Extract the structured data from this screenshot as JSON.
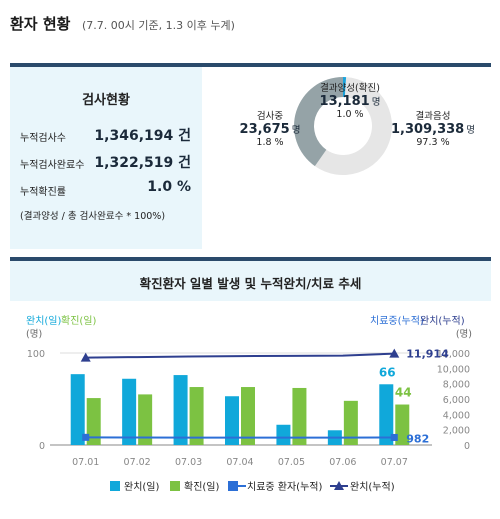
{
  "header": {
    "title": "환자 현황",
    "subtitle": "(7.7. 00시 기준, 1.3 이후 누계)"
  },
  "test_status": {
    "title": "검사현황",
    "rows": [
      {
        "label": "누적검사수",
        "value": "1,346,194 건"
      },
      {
        "label": "누적검사완료수",
        "value": "1,322,519 건"
      },
      {
        "label": "누적확진률",
        "value": "1.0 %"
      }
    ],
    "note": "(결과양성 / 총 검사완료수 * 100%)"
  },
  "donut": {
    "colors": {
      "positive": "#1aa3dc",
      "testing": "#95a3a7",
      "negative": "#e6e6e6"
    },
    "segments": [
      {
        "name": "결과양성(확진)",
        "count": "13,181",
        "unit": "명",
        "pct": "1.0 %",
        "value": 1.0
      },
      {
        "name": "검사중",
        "count": "23,675",
        "unit": "명",
        "pct": "1.8 %",
        "value": 1.8
      },
      {
        "name": "결과음성",
        "count": "1,309,338",
        "unit": "명",
        "pct": "97.3 %",
        "value": 97.3
      }
    ]
  },
  "chart_title": "확진환자 일별 발생 및 누적완치/치료 추세",
  "chart_data": {
    "type": "bar",
    "left_axis_title": "완치(일)확진(일)",
    "left_axis_unit": "(명)",
    "right_axis_title": "치료중(누적)완치(누적)",
    "right_axis_unit": "(명)",
    "left_ticks": [
      "100",
      "0"
    ],
    "right_ticks": [
      "12,000",
      "10,000",
      "8,000",
      "6,000",
      "4,000",
      "2,000",
      "0"
    ],
    "ylim_left": [
      0,
      100
    ],
    "ylim_right": [
      0,
      12000
    ],
    "categories": [
      "07.01",
      "07.02",
      "07.03",
      "07.04",
      "07.05",
      "07.06",
      "07.07"
    ],
    "series": [
      {
        "name": "완치(일)",
        "axis": "left",
        "kind": "bar",
        "color": "#10a8da",
        "values": [
          77,
          72,
          76,
          53,
          22,
          16,
          66
        ]
      },
      {
        "name": "확진(일)",
        "axis": "left",
        "kind": "bar",
        "color": "#7cc242",
        "values": [
          51,
          55,
          63,
          63,
          62,
          48,
          44
        ]
      },
      {
        "name": "치료중 환자(누적)",
        "axis": "right",
        "kind": "line",
        "color": "#2c6fd6",
        "values": [
          1000,
          980,
          970,
          960,
          960,
          970,
          982
        ]
      },
      {
        "name": "완치(누적)",
        "axis": "right",
        "kind": "line",
        "color": "#2e3f8f",
        "values": [
          11400,
          11470,
          11550,
          11600,
          11630,
          11650,
          11914
        ]
      }
    ],
    "data_labels": [
      {
        "text": "66",
        "color": "#10a8da"
      },
      {
        "text": "44",
        "color": "#7cc242"
      },
      {
        "text": "11,914",
        "color": "#2e3f8f"
      },
      {
        "text": "982",
        "color": "#2c6fd6"
      }
    ]
  }
}
